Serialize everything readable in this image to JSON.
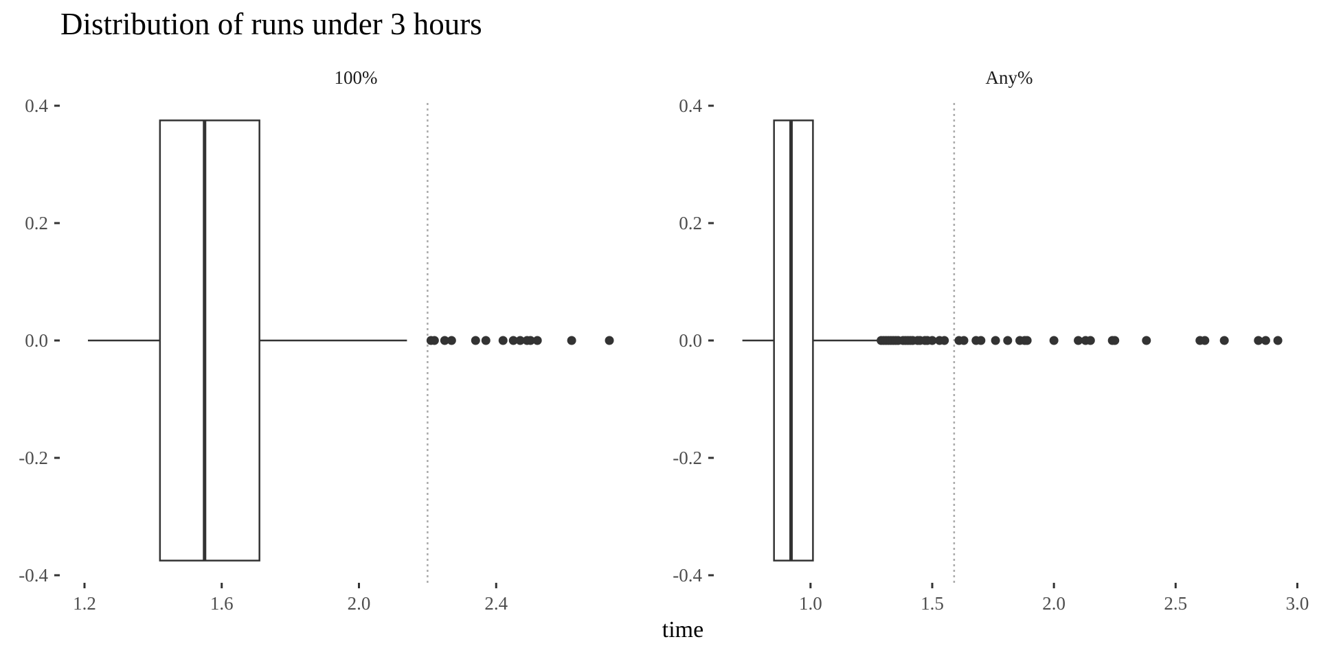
{
  "chart_data": {
    "type": "boxplot",
    "title": "Distribution of runs under 3 hours",
    "xlabel": "time",
    "ylabel": "",
    "ylim": [
      -0.4,
      0.4
    ],
    "yticks": [
      -0.4,
      -0.2,
      0.0,
      0.2,
      0.4
    ],
    "ytick_labels": [
      "-0.4",
      "-0.2",
      "0.0",
      "0.2",
      "0.4"
    ],
    "grid": false,
    "reference_line_color": "#aaaaaa",
    "box_color": "#333333",
    "facets": [
      {
        "label": "100%",
        "xlim": [
          1.19,
          2.8
        ],
        "xticks": [
          1.2,
          1.6,
          2.0,
          2.4
        ],
        "xtick_labels": [
          "1.2",
          "1.6",
          "2.0",
          "2.4"
        ],
        "whisker_low": 1.21,
        "q1": 1.42,
        "median": 1.55,
        "q3": 1.71,
        "whisker_high": 2.14,
        "reference_line": 2.2,
        "outliers": [
          2.21,
          2.22,
          2.25,
          2.27,
          2.34,
          2.37,
          2.42,
          2.45,
          2.47,
          2.49,
          2.5,
          2.52,
          2.62,
          2.73
        ]
      },
      {
        "label": "Any%",
        "xlim": [
          0.69,
          3.01
        ],
        "xticks": [
          1.0,
          1.5,
          2.0,
          2.5,
          3.0
        ],
        "xtick_labels": [
          "1.0",
          "1.5",
          "2.0",
          "2.5",
          "3.0"
        ],
        "whisker_low": 0.72,
        "q1": 0.85,
        "median": 0.92,
        "q3": 1.01,
        "whisker_high": 1.28,
        "reference_line": 1.59,
        "outliers": [
          1.29,
          1.3,
          1.31,
          1.32,
          1.33,
          1.34,
          1.35,
          1.36,
          1.38,
          1.39,
          1.4,
          1.41,
          1.42,
          1.44,
          1.45,
          1.47,
          1.48,
          1.5,
          1.53,
          1.55,
          1.61,
          1.63,
          1.68,
          1.7,
          1.76,
          1.81,
          1.86,
          1.88,
          1.89,
          2.0,
          2.1,
          2.13,
          2.15,
          2.24,
          2.25,
          2.38,
          2.6,
          2.62,
          2.7,
          2.84,
          2.87,
          2.92
        ]
      }
    ]
  }
}
